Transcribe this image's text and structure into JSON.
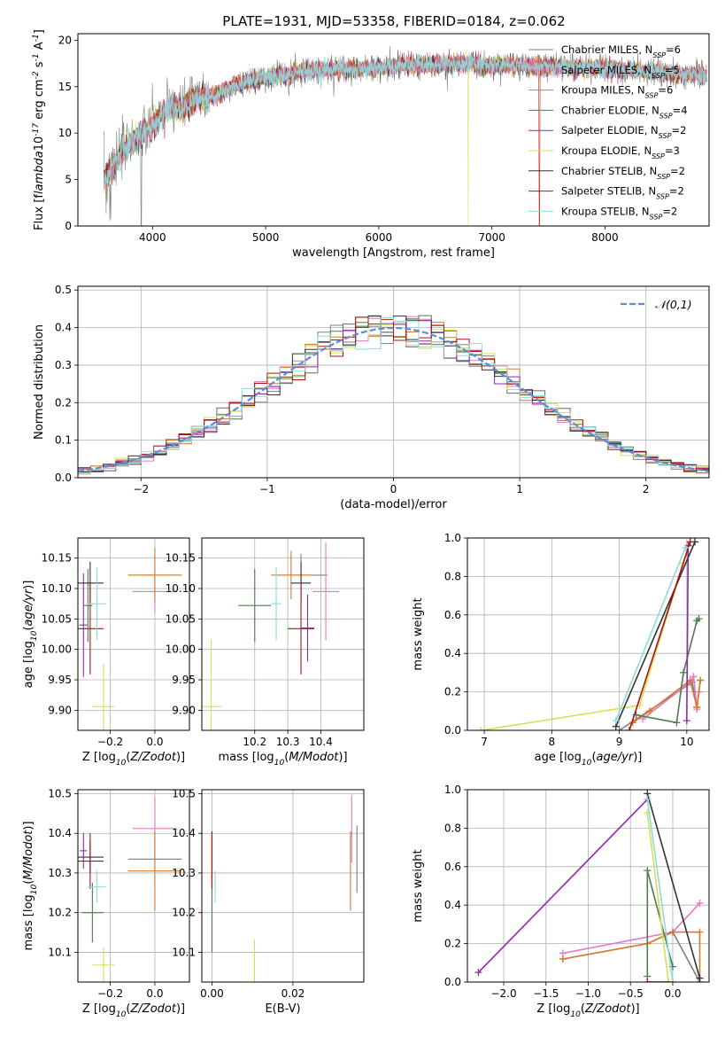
{
  "figure": {
    "title": "PLATE=1931, MJD=53358, FIBERID=0184, z=0.062"
  },
  "models": [
    {
      "label": "Chabrier MILES, N$_{SSP}$=6",
      "color": "#7f7f7f"
    },
    {
      "label": "Salpeter MILES, N$_{SSP}$=5",
      "color": "#e377c2"
    },
    {
      "label": "Kroupa MILES, N$_{SSP}$=6",
      "color": "#d97a2c"
    },
    {
      "label": "Chabrier ELODIE, N$_{SSP}$=4",
      "color": "#4f7a53"
    },
    {
      "label": "Salpeter ELODIE, N$_{SSP}$=2",
      "color": "#8e2aa8"
    },
    {
      "label": "Kroupa ELODIE, N$_{SSP}$=3",
      "color": "#d4e157"
    },
    {
      "label": "Chabrier STELIB, N$_{SSP}$=2",
      "color": "#333333"
    },
    {
      "label": "Salpeter STELIB, N$_{SSP}$=2",
      "color": "#b01010"
    },
    {
      "label": "Kroupa STELIB, N$_{SSP}$=2",
      "color": "#8fd9d9"
    }
  ],
  "chart_data": [
    {
      "id": "spectrum",
      "type": "line",
      "xlabel": "wavelength [Angstrom, rest frame]",
      "ylabel": "Flux [f$_\\lambda$10$^{-17}$ erg cm$^{-2}$ s$^{-1}$ A$^{-1}$]",
      "xlim": [
        3340,
        8920
      ],
      "ylim": [
        0,
        20.7
      ],
      "xticks": [
        4000,
        5000,
        6000,
        7000,
        8000
      ],
      "yticks": [
        0,
        5,
        10,
        15,
        20
      ],
      "grid": false,
      "legend": "right",
      "observed_envelope": {
        "x": [
          3570,
          3650,
          3750,
          3850,
          3950,
          4050,
          4150,
          4250,
          4350,
          4450,
          4550,
          4700,
          4850,
          5000,
          5200,
          5400,
          5600,
          5800,
          6000,
          6200,
          6400,
          6600,
          6800,
          7000,
          7200,
          7400,
          7600,
          7800,
          8000,
          8200,
          8400,
          8600,
          8800,
          8900
        ],
        "y": [
          4.8,
          6.5,
          8.2,
          9.5,
          10.0,
          11.6,
          12.8,
          12.5,
          13.4,
          14.0,
          13.9,
          15.0,
          15.6,
          16.0,
          16.4,
          16.8,
          16.9,
          16.9,
          17.0,
          17.3,
          17.3,
          17.4,
          17.5,
          17.2,
          17.4,
          17.1,
          17.2,
          17.1,
          16.9,
          16.8,
          16.6,
          16.4,
          16.3,
          16.2
        ]
      }
    },
    {
      "id": "residuals",
      "type": "line",
      "xlabel": "(data-model)/error",
      "ylabel": "Normed distribution",
      "xlim": [
        -2.5,
        2.5
      ],
      "ylim": [
        0,
        0.51
      ],
      "xticks": [
        -2,
        -1,
        0,
        1,
        2
      ],
      "yticks": [
        0.0,
        0.1,
        0.2,
        0.3,
        0.4,
        0.5
      ],
      "grid": true,
      "legend": "top-right",
      "reference_label": "$\\mathcal{N}(0,1)$",
      "reference_color": "#5b8bd9",
      "bin_width": 0.1
    },
    {
      "id": "age-vs-Z",
      "type": "scatter",
      "xlabel": "Z [log$_{10}$($Z/Z_\\odot$)]",
      "ylabel": "age  [log$_{10}$($age/yr$)]",
      "xlim": [
        -0.345,
        0.155
      ],
      "ylim": [
        9.867,
        10.183
      ],
      "xticks": [
        -0.2,
        0.0
      ],
      "yticks": [
        9.9,
        9.95,
        10.0,
        10.05,
        10.1,
        10.15
      ],
      "grid": true,
      "points": [
        {
          "x": 0.0,
          "y": 10.122,
          "xerr": 0.12,
          "yerr": 0.035,
          "c": 0
        },
        {
          "x": 0.0,
          "y": 10.095,
          "xerr": 0.1,
          "yerr": 0.035,
          "c": 1
        },
        {
          "x": 0.0,
          "y": 10.122,
          "xerr": 0.12,
          "yerr": 0.045,
          "c": 2
        },
        {
          "x": -0.3,
          "y": 10.072,
          "xerr": 0.02,
          "yerr": 0.06,
          "c": 3
        },
        {
          "x": -0.32,
          "y": 10.04,
          "xerr": 0.018,
          "yerr": 0.085,
          "c": 4
        },
        {
          "x": -0.23,
          "y": 9.906,
          "xerr": 0.05,
          "yerr": 0.07,
          "c": 5
        },
        {
          "x": -0.29,
          "y": 10.109,
          "xerr": 0.06,
          "yerr": 0.035,
          "c": 6
        },
        {
          "x": -0.29,
          "y": 10.034,
          "xerr": 0.06,
          "yerr": 0.075,
          "c": 7
        },
        {
          "x": -0.26,
          "y": 10.075,
          "xerr": 0.04,
          "yerr": 0.06,
          "c": 8
        }
      ]
    },
    {
      "id": "age-vs-mass",
      "type": "scatter",
      "xlabel": "mass [log$_{10}$($M/M_\\odot$)]",
      "ylabel": "",
      "xlim": [
        10.04,
        10.53
      ],
      "ylim": [
        9.867,
        10.183
      ],
      "xticks": [
        10.2,
        10.3,
        10.4
      ],
      "yticks": [
        9.9,
        9.95,
        10.0,
        10.05,
        10.1,
        10.15
      ],
      "grid": true,
      "points": [
        {
          "x": 10.34,
          "y": 10.122,
          "xerr": 0.08,
          "yerr": 0.035,
          "c": 0
        },
        {
          "x": 10.415,
          "y": 10.095,
          "xerr": 0.04,
          "yerr": 0.08,
          "c": 1
        },
        {
          "x": 10.31,
          "y": 10.122,
          "xerr": 0.06,
          "yerr": 0.04,
          "c": 2
        },
        {
          "x": 10.2,
          "y": 10.072,
          "xerr": 0.05,
          "yerr": 0.06,
          "c": 3
        },
        {
          "x": 10.36,
          "y": 10.035,
          "xerr": 0.02,
          "yerr": 0.055,
          "c": 4
        },
        {
          "x": 10.068,
          "y": 9.906,
          "xerr": 0.03,
          "yerr": 0.11,
          "c": 5
        },
        {
          "x": 10.34,
          "y": 10.109,
          "xerr": 0.03,
          "yerr": 0.035,
          "c": 6
        },
        {
          "x": 10.34,
          "y": 10.034,
          "xerr": 0.04,
          "yerr": 0.075,
          "c": 7
        },
        {
          "x": 10.265,
          "y": 10.075,
          "xerr": 0.015,
          "yerr": 0.06,
          "c": 8
        }
      ]
    },
    {
      "id": "weight-vs-age",
      "type": "line",
      "xlabel": "age  [log$_{10}$($age/yr$)]",
      "ylabel": "mass weight",
      "xlim": [
        6.75,
        10.33
      ],
      "ylim": [
        0,
        1.0
      ],
      "xticks": [
        7,
        8,
        9,
        10
      ],
      "yticks": [
        0.0,
        0.2,
        0.4,
        0.6,
        0.8,
        1.0
      ],
      "grid": true,
      "series": [
        {
          "c": 0,
          "x": [
            9.0,
            10.08,
            10.15,
            10.2
          ],
          "y": [
            0.0,
            0.25,
            0.12,
            0.26
          ]
        },
        {
          "c": 1,
          "x": [
            9.35,
            10.05,
            10.1,
            10.15,
            10.18
          ],
          "y": [
            0.06,
            0.25,
            0.28,
            0.11,
            0.2
          ]
        },
        {
          "c": 2,
          "x": [
            9.2,
            9.45,
            10.05,
            10.15,
            10.2
          ],
          "y": [
            0.04,
            0.1,
            0.26,
            0.12,
            0.26
          ]
        },
        {
          "c": 3,
          "x": [
            9.25,
            9.85,
            9.95,
            10.15,
            10.18
          ],
          "y": [
            0.08,
            0.04,
            0.3,
            0.57,
            0.58
          ]
        },
        {
          "c": 4,
          "x": [
            10.0,
            10.02
          ],
          "y": [
            0.05,
            0.96
          ]
        },
        {
          "c": 5,
          "x": [
            6.95,
            9.3,
            9.95
          ],
          "y": [
            0.0,
            0.13,
            0.87
          ]
        },
        {
          "c": 6,
          "x": [
            8.95,
            10.12
          ],
          "y": [
            0.02,
            0.98
          ]
        },
        {
          "c": 7,
          "x": [
            9.15,
            10.05
          ],
          "y": [
            0.0,
            0.98
          ]
        },
        {
          "c": 8,
          "x": [
            8.95,
            9.98
          ],
          "y": [
            0.05,
            0.95
          ]
        }
      ]
    },
    {
      "id": "mass-vs-Z",
      "type": "scatter",
      "xlabel": "Z [log$_{10}$($Z/Z_\\odot$)]",
      "ylabel": "mass [log$_{10}$($M/M_\\odot$)]",
      "xlim": [
        -0.345,
        0.155
      ],
      "ylim": [
        10.025,
        10.51
      ],
      "xticks": [
        -0.2,
        0.0
      ],
      "yticks": [
        10.1,
        10.2,
        10.3,
        10.4,
        10.5
      ],
      "grid": true,
      "points": [
        {
          "x": 0.0,
          "y": 10.335,
          "xerr": 0.12,
          "yerr": 0.07,
          "c": 0
        },
        {
          "x": 0.0,
          "y": 10.412,
          "xerr": 0.1,
          "yerr": 0.08,
          "c": 1
        },
        {
          "x": 0.0,
          "y": 10.305,
          "xerr": 0.12,
          "yerr": 0.1,
          "c": 2
        },
        {
          "x": -0.28,
          "y": 10.2,
          "xerr": 0.05,
          "yerr": 0.075,
          "c": 3
        },
        {
          "x": -0.32,
          "y": 10.356,
          "xerr": 0.016,
          "yerr": 0.045,
          "c": 4
        },
        {
          "x": -0.23,
          "y": 10.068,
          "xerr": 0.05,
          "yerr": 0.045,
          "c": 5
        },
        {
          "x": -0.29,
          "y": 10.34,
          "xerr": 0.06,
          "yerr": 0.04,
          "c": 6
        },
        {
          "x": -0.29,
          "y": 10.33,
          "xerr": 0.06,
          "yerr": 0.07,
          "c": 7
        },
        {
          "x": -0.26,
          "y": 10.265,
          "xerr": 0.04,
          "yerr": 0.04,
          "c": 8
        }
      ]
    },
    {
      "id": "mass-vs-EBV",
      "type": "scatter",
      "xlabel": "E(B-V)",
      "ylabel": "",
      "xlim": [
        -0.0025,
        0.0375
      ],
      "ylim": [
        10.025,
        10.51
      ],
      "xticks": [
        0.0,
        0.02
      ],
      "yticks": [
        10.1,
        10.2,
        10.3,
        10.4,
        10.5
      ],
      "grid": true,
      "points": [
        {
          "x": 0.0358,
          "y": 10.335,
          "xerr": 0,
          "yerr": 0.085,
          "c": 0
        },
        {
          "x": 0.0345,
          "y": 10.412,
          "xerr": 0,
          "yerr": 0.085,
          "c": 1
        },
        {
          "x": 0.0342,
          "y": 10.305,
          "xerr": 0,
          "yerr": 0.1,
          "c": 2
        },
        {
          "x": 0.0,
          "y": 10.2,
          "xerr": 0,
          "yerr": 0.1,
          "c": 3
        },
        {
          "x": 0.0,
          "y": 10.356,
          "xerr": 0,
          "yerr": 0.045,
          "c": 4
        },
        {
          "x": 0.0105,
          "y": 10.068,
          "xerr": 0,
          "yerr": 0.065,
          "c": 5
        },
        {
          "x": 0.0,
          "y": 10.34,
          "xerr": 0,
          "yerr": 0.065,
          "c": 6
        },
        {
          "x": 0.0,
          "y": 10.33,
          "xerr": 0,
          "yerr": 0.07,
          "c": 7
        },
        {
          "x": 0.0008,
          "y": 10.265,
          "xerr": 0,
          "yerr": 0.04,
          "c": 8
        }
      ]
    },
    {
      "id": "weight-vs-Z",
      "type": "line",
      "xlabel": "Z [log$_{10}$($Z/Z_\\odot$)]",
      "ylabel": "mass weight",
      "xlim": [
        -2.43,
        0.43
      ],
      "ylim": [
        0,
        1.0
      ],
      "xticks": [
        -2.0,
        -1.5,
        -1.0,
        -0.5,
        0.0
      ],
      "yticks": [
        0.0,
        0.2,
        0.4,
        0.6,
        0.8,
        1.0
      ],
      "grid": true,
      "series": [
        {
          "c": 0,
          "x": [
            -1.3,
            -0.3,
            0.0,
            0.32
          ],
          "y": [
            0.12,
            0.2,
            0.26,
            0.0
          ]
        },
        {
          "c": 1,
          "x": [
            -1.3,
            0.0,
            0.32
          ],
          "y": [
            0.15,
            0.26,
            0.41
          ]
        },
        {
          "c": 2,
          "x": [
            -1.3,
            -0.3,
            0.0,
            0.32,
            0.32
          ],
          "y": [
            0.12,
            0.2,
            0.26,
            0.26,
            0.0
          ]
        },
        {
          "c": 3,
          "x": [
            -0.3,
            -0.3,
            0.0
          ],
          "y": [
            0.03,
            0.58,
            0.08
          ]
        },
        {
          "c": 4,
          "x": [
            -2.3,
            -0.3
          ],
          "y": [
            0.05,
            0.95
          ]
        },
        {
          "c": 5,
          "x": [
            -0.3,
            -0.05
          ],
          "y": [
            0.88,
            0.0
          ]
        },
        {
          "c": 6,
          "x": [
            -0.3,
            0.32
          ],
          "y": [
            0.98,
            0.02
          ]
        },
        {
          "c": 7,
          "x": [
            -0.3,
            0.0
          ],
          "y": [
            0.0,
            0.0
          ]
        },
        {
          "c": 8,
          "x": [
            -0.3,
            0.0
          ],
          "y": [
            0.95,
            0.0
          ]
        }
      ]
    }
  ]
}
